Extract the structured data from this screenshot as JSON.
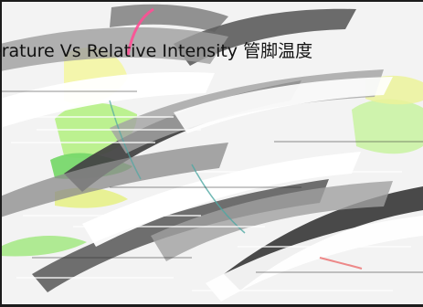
{
  "chart_data": {
    "type": "other",
    "title": "erature Vs Relative Intensity 管脚温度"
  }
}
